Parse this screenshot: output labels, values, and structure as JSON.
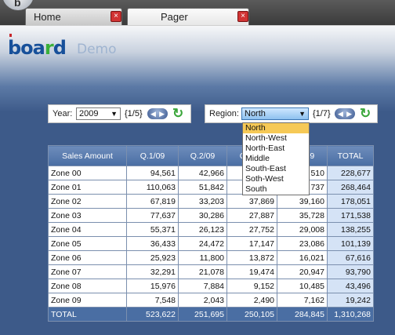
{
  "app": {
    "orb_glyph": "b"
  },
  "tabs": [
    {
      "label": "Home"
    },
    {
      "label": "Pager"
    }
  ],
  "header": {
    "logo_text_a": "boa",
    "logo_text_o": "r",
    "logo_text_b": "d",
    "demo_label": "Demo"
  },
  "year_pager": {
    "label": "Year:",
    "value": "2009",
    "counter": "{1/5}"
  },
  "region_pager": {
    "label": "Region:",
    "value": "North",
    "counter": "{1/7}",
    "options": [
      "North",
      "North-West",
      "North-East",
      "Middle",
      "South-East",
      "Soth-West",
      "South"
    ],
    "selected_index": 0
  },
  "table": {
    "columns": [
      "Sales Amount",
      "Q.1/09",
      "Q.2/09",
      "Q.3/09",
      "Q.4/09",
      "TOTAL"
    ],
    "rows": [
      [
        "Zone 00",
        "94,561",
        "42,966",
        "",
        "",
        "228,677"
      ],
      [
        "Zone 01",
        "110,063",
        "51,842",
        "",
        "",
        "268,464"
      ],
      [
        "Zone 02",
        "67,819",
        "33,203",
        "37,869",
        "39,160",
        "178,051"
      ],
      [
        "Zone 03",
        "77,637",
        "30,286",
        "27,887",
        "35,728",
        "171,538"
      ],
      [
        "Zone 04",
        "55,371",
        "26,123",
        "27,752",
        "29,008",
        "138,255"
      ],
      [
        "Zone 05",
        "36,433",
        "24,472",
        "17,147",
        "23,086",
        "101,139"
      ],
      [
        "Zone 06",
        "25,923",
        "11,800",
        "13,872",
        "16,021",
        "67,616"
      ],
      [
        "Zone 07",
        "32,291",
        "21,078",
        "19,474",
        "20,947",
        "93,790"
      ],
      [
        "Zone 08",
        "15,976",
        "7,884",
        "9,152",
        "10,485",
        "43,496"
      ],
      [
        "Zone 09",
        "7,548",
        "2,043",
        "2,490",
        "7,162",
        "19,242"
      ]
    ],
    "total_row": [
      "TOTAL",
      "523,622",
      "251,695",
      "250,105",
      "284,845",
      "1,310,268"
    ],
    "partial_cells": [
      [
        "",
        "",
        "",
        "",
        "",
        ""
      ],
      [
        "",
        "",
        "",
        "",
        "",
        ""
      ]
    ],
    "partial_q4": [
      "510",
      "737"
    ]
  },
  "icons": {
    "close": "×",
    "dropdown_arrow": "▼",
    "nav_prev": "◀",
    "nav_next": "▶",
    "refresh": "↻"
  },
  "colors": {
    "background": "#3d5a89",
    "header_blue": "#4a6ea3",
    "close_red": "#d13434",
    "selected_option": "#f6c956"
  }
}
